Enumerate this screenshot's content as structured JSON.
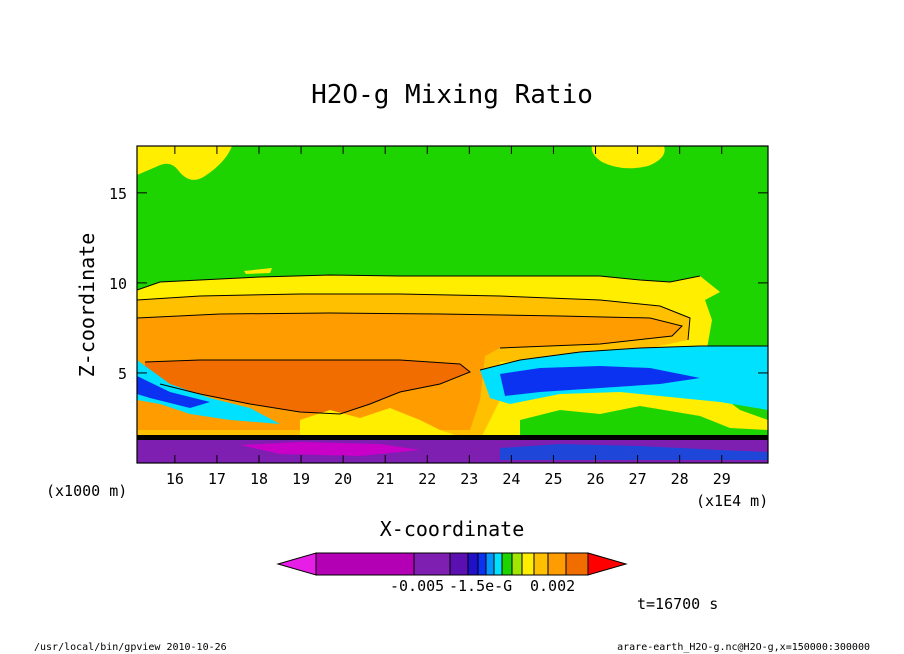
{
  "chart_data": {
    "type": "heatmap",
    "title": "H2O-g Mixing Ratio",
    "xlabel": "X-coordinate",
    "ylabel": "Z-coordinate",
    "x_unit": "(x1E4 m)",
    "y_unit": "(x1000 m)",
    "xlim": [
      15.1,
      30.1
    ],
    "ylim": [
      0.0,
      17.6
    ],
    "x_ticks": [
      "16",
      "17",
      "18",
      "19",
      "20",
      "21",
      "22",
      "23",
      "24",
      "25",
      "26",
      "27",
      "28",
      "29"
    ],
    "y_ticks": [
      "5",
      "10",
      "15"
    ],
    "colorbar_labels": [
      "-0.005",
      "-1.5e-G",
      "0.002"
    ],
    "time_label": "t=16700 s",
    "grid": false,
    "colors": {
      "magenta": "#c800c8",
      "purple": "#7f1fb2",
      "violet": "#5a10b0",
      "blue": "#0b32f0",
      "cyan": "#00e1ff",
      "green": "#1ed400",
      "yellow": "#ffee00",
      "light_orange": "#ffc000",
      "orange": "#ff9c00",
      "dark_orange": "#f26d00",
      "red": "#ff0000"
    },
    "regions": [
      {
        "name": "upper-green",
        "color": "green"
      },
      {
        "name": "mid-orange-plume",
        "color": "orange"
      },
      {
        "name": "cyan-tongue",
        "color": "cyan"
      },
      {
        "name": "surface-purple",
        "color": "purple"
      }
    ]
  },
  "footer": {
    "left": "/usr/local/bin/gpview  2010-10-26",
    "right": "arare-earth_H2O-g.nc@H2O-g,x=150000:300000"
  }
}
